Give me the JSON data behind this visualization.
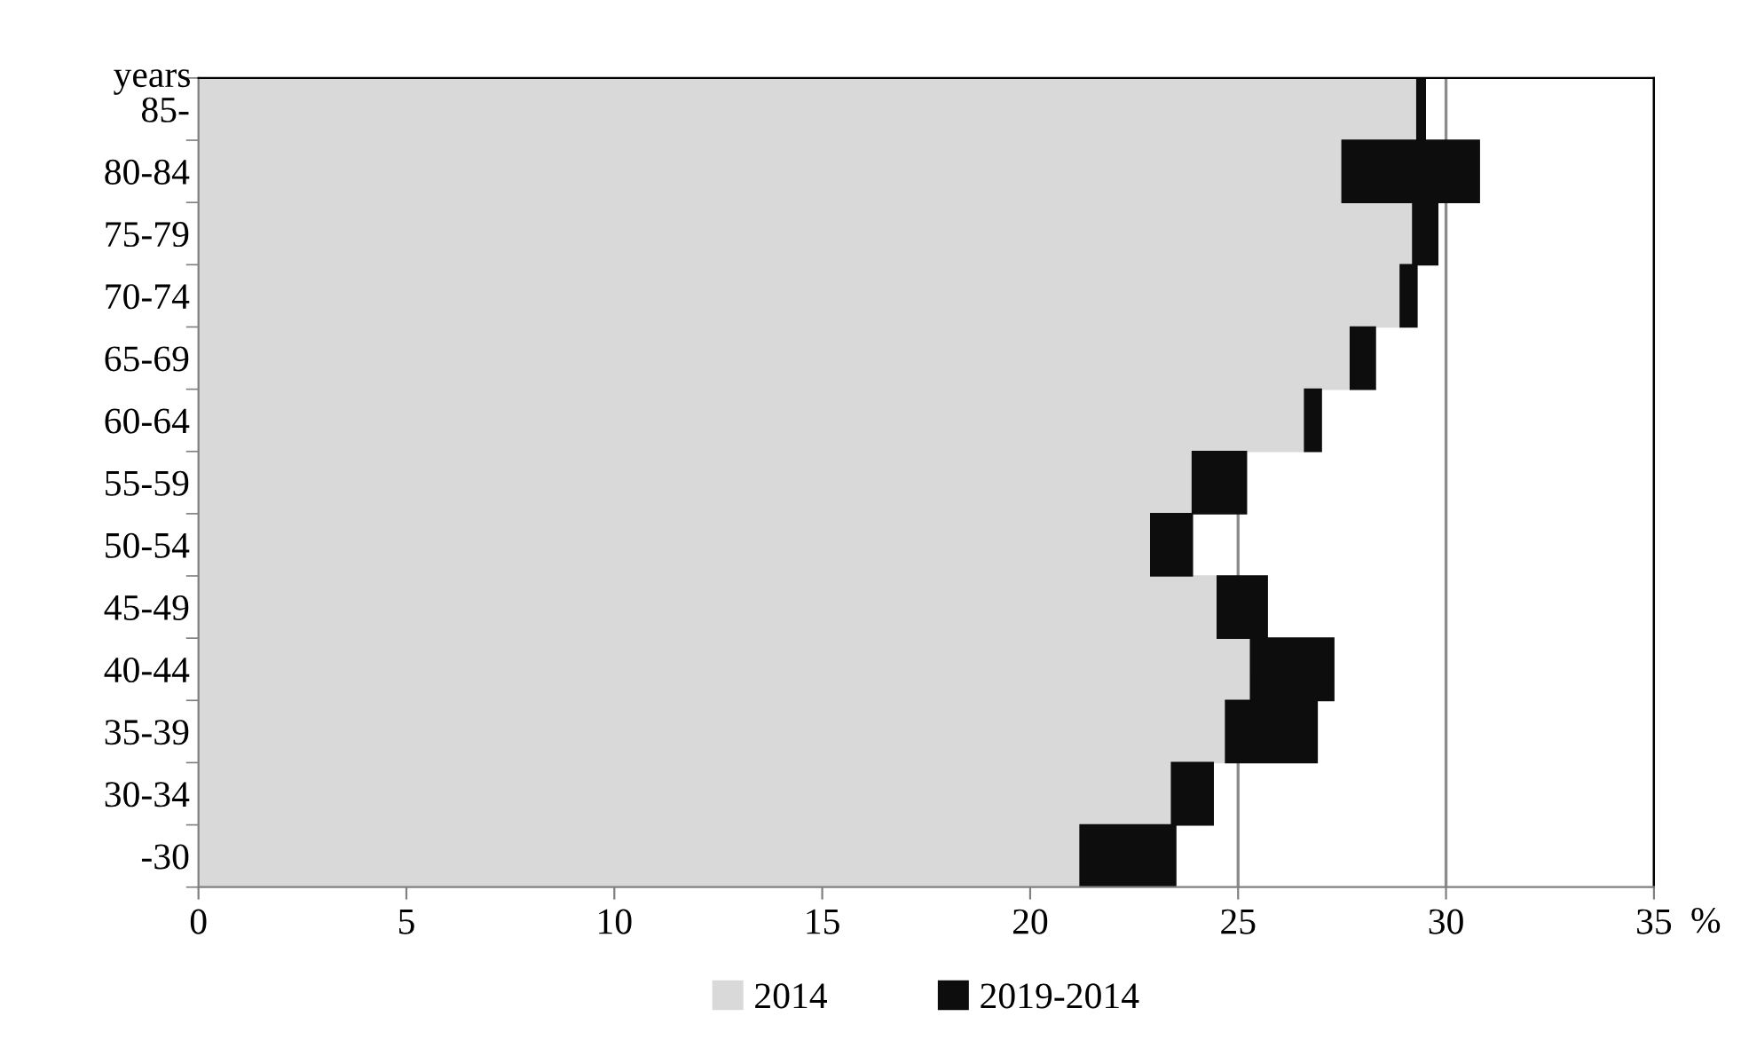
{
  "chart_data": {
    "type": "bar",
    "orientation": "horizontal",
    "stacked": true,
    "ylabel": "years",
    "xlabel": "%",
    "categories": [
      "85-",
      "80-84",
      "75-79",
      "70-74",
      "65-69",
      "60-64",
      "55-59",
      "50-54",
      "45-49",
      "40-44",
      "35-39",
      "30-34",
      "-30"
    ],
    "series": [
      {
        "name": "2014",
        "color": "#d9d9d9",
        "values": [
          29.3,
          27.5,
          29.2,
          28.9,
          27.7,
          26.6,
          23.9,
          22.9,
          24.5,
          25.3,
          24.7,
          23.4,
          21.2
        ]
      },
      {
        "name": "2019-2014",
        "color": "#0d0d0d",
        "values": [
          0.2,
          3.3,
          0.6,
          0.4,
          0.6,
          0.4,
          1.3,
          1.0,
          1.2,
          2.0,
          2.2,
          1.0,
          2.3
        ]
      }
    ],
    "xlim": [
      0,
      35
    ],
    "xticks": [
      0,
      5,
      10,
      15,
      20,
      25,
      30,
      35
    ],
    "grid": "x",
    "legend": "bottom"
  }
}
